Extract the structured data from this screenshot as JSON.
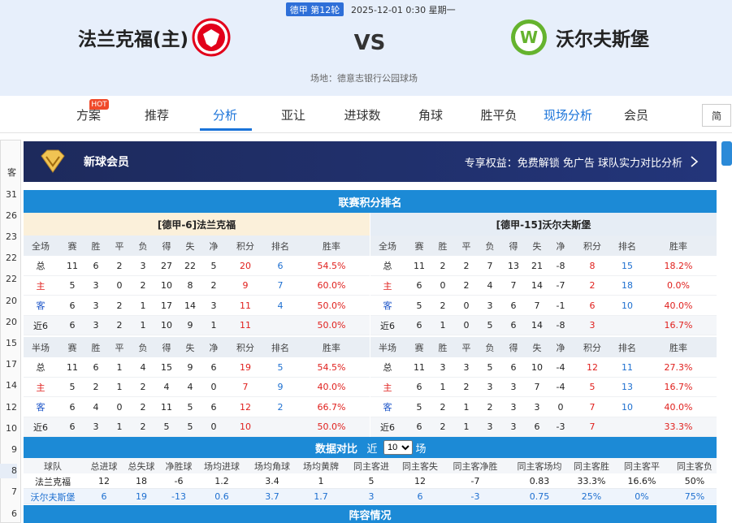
{
  "header": {
    "round": "德甲 第12轮",
    "datetime": "2025-12-01 0:30 星期一",
    "home_team": "法兰克福(主)",
    "vs": "VS",
    "away_team": "沃尔夫斯堡",
    "venue": "场地：德意志银行公园球场"
  },
  "nav": {
    "tabs": [
      "方案",
      "推荐",
      "分析",
      "亚让",
      "进球数",
      "角球",
      "胜平负",
      "现场分析",
      "会员"
    ],
    "hot_badge": "HOT",
    "lang": "简"
  },
  "sidebar": {
    "top": "客",
    "numbers": [
      "31",
      "26",
      "23",
      "22",
      "22",
      "20",
      "20",
      "15",
      "17",
      "14",
      "12",
      "10",
      "9",
      "8",
      "7",
      "6"
    ]
  },
  "banner": {
    "title": "新球会员",
    "benefits": "专享权益：免费解锁 免广告 球队实力对比分析"
  },
  "standings": {
    "title": "联赛积分排名",
    "home": {
      "team": "[德甲-6]法兰克福",
      "full_header": [
        "全场",
        "赛",
        "胜",
        "平",
        "负",
        "得",
        "失",
        "净",
        "积分",
        "排名",
        "胜率"
      ],
      "full_rows": [
        [
          "总",
          "11",
          "6",
          "2",
          "3",
          "27",
          "22",
          "5",
          "20",
          "6",
          "54.5%"
        ],
        [
          "主",
          "5",
          "3",
          "0",
          "2",
          "10",
          "8",
          "2",
          "9",
          "7",
          "60.0%"
        ],
        [
          "客",
          "6",
          "3",
          "2",
          "1",
          "17",
          "14",
          "3",
          "11",
          "4",
          "50.0%"
        ],
        [
          "近6",
          "6",
          "3",
          "2",
          "1",
          "10",
          "9",
          "1",
          "11",
          null,
          "50.0%"
        ]
      ],
      "half_header": [
        "半场",
        "赛",
        "胜",
        "平",
        "负",
        "得",
        "失",
        "净",
        "积分",
        "排名",
        "胜率"
      ],
      "half_rows": [
        [
          "总",
          "11",
          "6",
          "1",
          "4",
          "15",
          "9",
          "6",
          "19",
          "5",
          "54.5%"
        ],
        [
          "主",
          "5",
          "2",
          "1",
          "2",
          "4",
          "4",
          "0",
          "7",
          "9",
          "40.0%"
        ],
        [
          "客",
          "6",
          "4",
          "0",
          "2",
          "11",
          "5",
          "6",
          "12",
          "2",
          "66.7%"
        ],
        [
          "近6",
          "6",
          "3",
          "1",
          "2",
          "5",
          "5",
          "0",
          "10",
          null,
          "50.0%"
        ]
      ]
    },
    "away": {
      "team": "[德甲-15]沃尔夫斯堡",
      "full_header": [
        "全场",
        "赛",
        "胜",
        "平",
        "负",
        "得",
        "失",
        "净",
        "积分",
        "排名",
        "胜率"
      ],
      "full_rows": [
        [
          "总",
          "11",
          "2",
          "2",
          "7",
          "13",
          "21",
          "-8",
          "8",
          "15",
          "18.2%"
        ],
        [
          "主",
          "6",
          "0",
          "2",
          "4",
          "7",
          "14",
          "-7",
          "2",
          "18",
          "0.0%"
        ],
        [
          "客",
          "5",
          "2",
          "0",
          "3",
          "6",
          "7",
          "-1",
          "6",
          "10",
          "40.0%"
        ],
        [
          "近6",
          "6",
          "1",
          "0",
          "5",
          "6",
          "14",
          "-8",
          "3",
          null,
          "16.7%"
        ]
      ],
      "half_header": [
        "半场",
        "赛",
        "胜",
        "平",
        "负",
        "得",
        "失",
        "净",
        "积分",
        "排名",
        "胜率"
      ],
      "half_rows": [
        [
          "总",
          "11",
          "3",
          "3",
          "5",
          "6",
          "10",
          "-4",
          "12",
          "11",
          "27.3%"
        ],
        [
          "主",
          "6",
          "1",
          "2",
          "3",
          "3",
          "7",
          "-4",
          "5",
          "13",
          "16.7%"
        ],
        [
          "客",
          "5",
          "2",
          "1",
          "2",
          "3",
          "3",
          "0",
          "7",
          "10",
          "40.0%"
        ],
        [
          "近6",
          "6",
          "2",
          "1",
          "3",
          "3",
          "6",
          "-3",
          "7",
          null,
          "33.3%"
        ]
      ]
    }
  },
  "comparison": {
    "title": "数据对比",
    "recent_prefix": "近",
    "recent_options": [
      "10"
    ],
    "recent_suffix": "场",
    "columns": [
      "球队",
      "总进球",
      "总失球",
      "净胜球",
      "场均进球",
      "场均角球",
      "场均黄牌",
      "同主客进",
      "同主客失",
      "同主客净胜",
      "同主客场均",
      "同主客胜",
      "同主客平",
      "同主客负"
    ],
    "rows": [
      [
        "法兰克福",
        "12",
        "18",
        "-6",
        "1.2",
        "3.4",
        "1",
        "5",
        "12",
        "-7",
        "0.83",
        "33.3%",
        "16.6%",
        "50%"
      ],
      [
        "沃尔夫斯堡",
        "6",
        "19",
        "-13",
        "0.6",
        "3.7",
        "1.7",
        "3",
        "6",
        "-3",
        "0.75",
        "25%",
        "0%",
        "75%"
      ]
    ]
  },
  "lineup": {
    "title": "阵容情况"
  }
}
